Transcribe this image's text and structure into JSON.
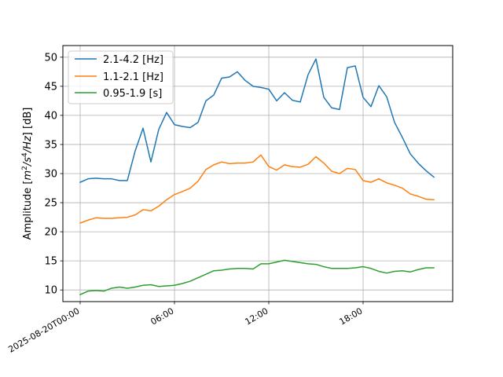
{
  "chart_data": {
    "type": "line",
    "title": "",
    "xlabel": "",
    "ylabel": "Amplitude [m²/s⁴/Hz] [dB]",
    "ylabel_parts": {
      "prefix": "Amplitude [",
      "m": "m",
      "m_exp": "2",
      "mid1": "/",
      "s": "s",
      "s_exp": "4",
      "mid2": "/",
      "hz": "Hz",
      "suffix": "] [dB]"
    },
    "ylim": [
      8.0,
      52.0
    ],
    "y_ticks": [
      10,
      15,
      20,
      25,
      30,
      35,
      40,
      45,
      50
    ],
    "y_tick_labels": [
      "10",
      "15",
      "20",
      "25",
      "30",
      "35",
      "40",
      "45",
      "50"
    ],
    "x_start": "2025-08-20T00:00",
    "x_step_minutes": 30,
    "xlim_hours": [
      -1.1,
      23.7
    ],
    "x_ticks_hours": [
      0,
      6,
      12,
      18
    ],
    "x_tick_labels": [
      "2025-08-20T00:00",
      "06:00",
      "12:00",
      "18:00"
    ],
    "grid": true,
    "legend_position": "top-left",
    "series": [
      {
        "name": "2.1-4.2 [Hz]",
        "color": "#1f77b4",
        "values": [
          28.5,
          29.1,
          29.2,
          29.1,
          29.1,
          28.8,
          28.8,
          33.9,
          37.8,
          32.0,
          37.6,
          40.5,
          38.4,
          38.1,
          37.9,
          38.8,
          42.5,
          43.5,
          46.4,
          46.6,
          47.5,
          46.0,
          45.0,
          44.8,
          44.5,
          42.5,
          43.9,
          42.6,
          42.3,
          47.0,
          49.7,
          43.1,
          41.3,
          41.0,
          48.2,
          48.5,
          43.1,
          41.5,
          45.1,
          43.2,
          38.8,
          36.2,
          33.4,
          31.8,
          30.5,
          29.4
        ]
      },
      {
        "name": "1.1-2.1 [Hz]",
        "color": "#ff7f0e",
        "values": [
          21.5,
          22.0,
          22.4,
          22.3,
          22.3,
          22.4,
          22.5,
          22.9,
          23.8,
          23.6,
          24.4,
          25.5,
          26.4,
          26.9,
          27.5,
          28.7,
          30.7,
          31.5,
          32.0,
          31.7,
          31.8,
          31.8,
          32.0,
          33.2,
          31.2,
          30.6,
          31.5,
          31.2,
          31.1,
          31.6,
          32.9,
          31.8,
          30.4,
          30.0,
          30.9,
          30.7,
          28.8,
          28.5,
          29.1,
          28.4,
          28.0,
          27.5,
          26.5,
          26.1,
          25.6,
          25.5
        ]
      },
      {
        "name": "0.95-1.9 [s]",
        "color": "#2ca02c",
        "values": [
          9.2,
          9.8,
          9.9,
          9.8,
          10.3,
          10.5,
          10.3,
          10.5,
          10.8,
          10.9,
          10.6,
          10.7,
          10.8,
          11.1,
          11.5,
          12.1,
          12.7,
          13.3,
          13.4,
          13.6,
          13.7,
          13.7,
          13.6,
          14.5,
          14.5,
          14.8,
          15.1,
          14.9,
          14.7,
          14.5,
          14.4,
          14.0,
          13.7,
          13.7,
          13.7,
          13.8,
          14.0,
          13.7,
          13.2,
          12.9,
          13.2,
          13.3,
          13.1,
          13.5,
          13.8,
          13.8
        ]
      }
    ]
  }
}
